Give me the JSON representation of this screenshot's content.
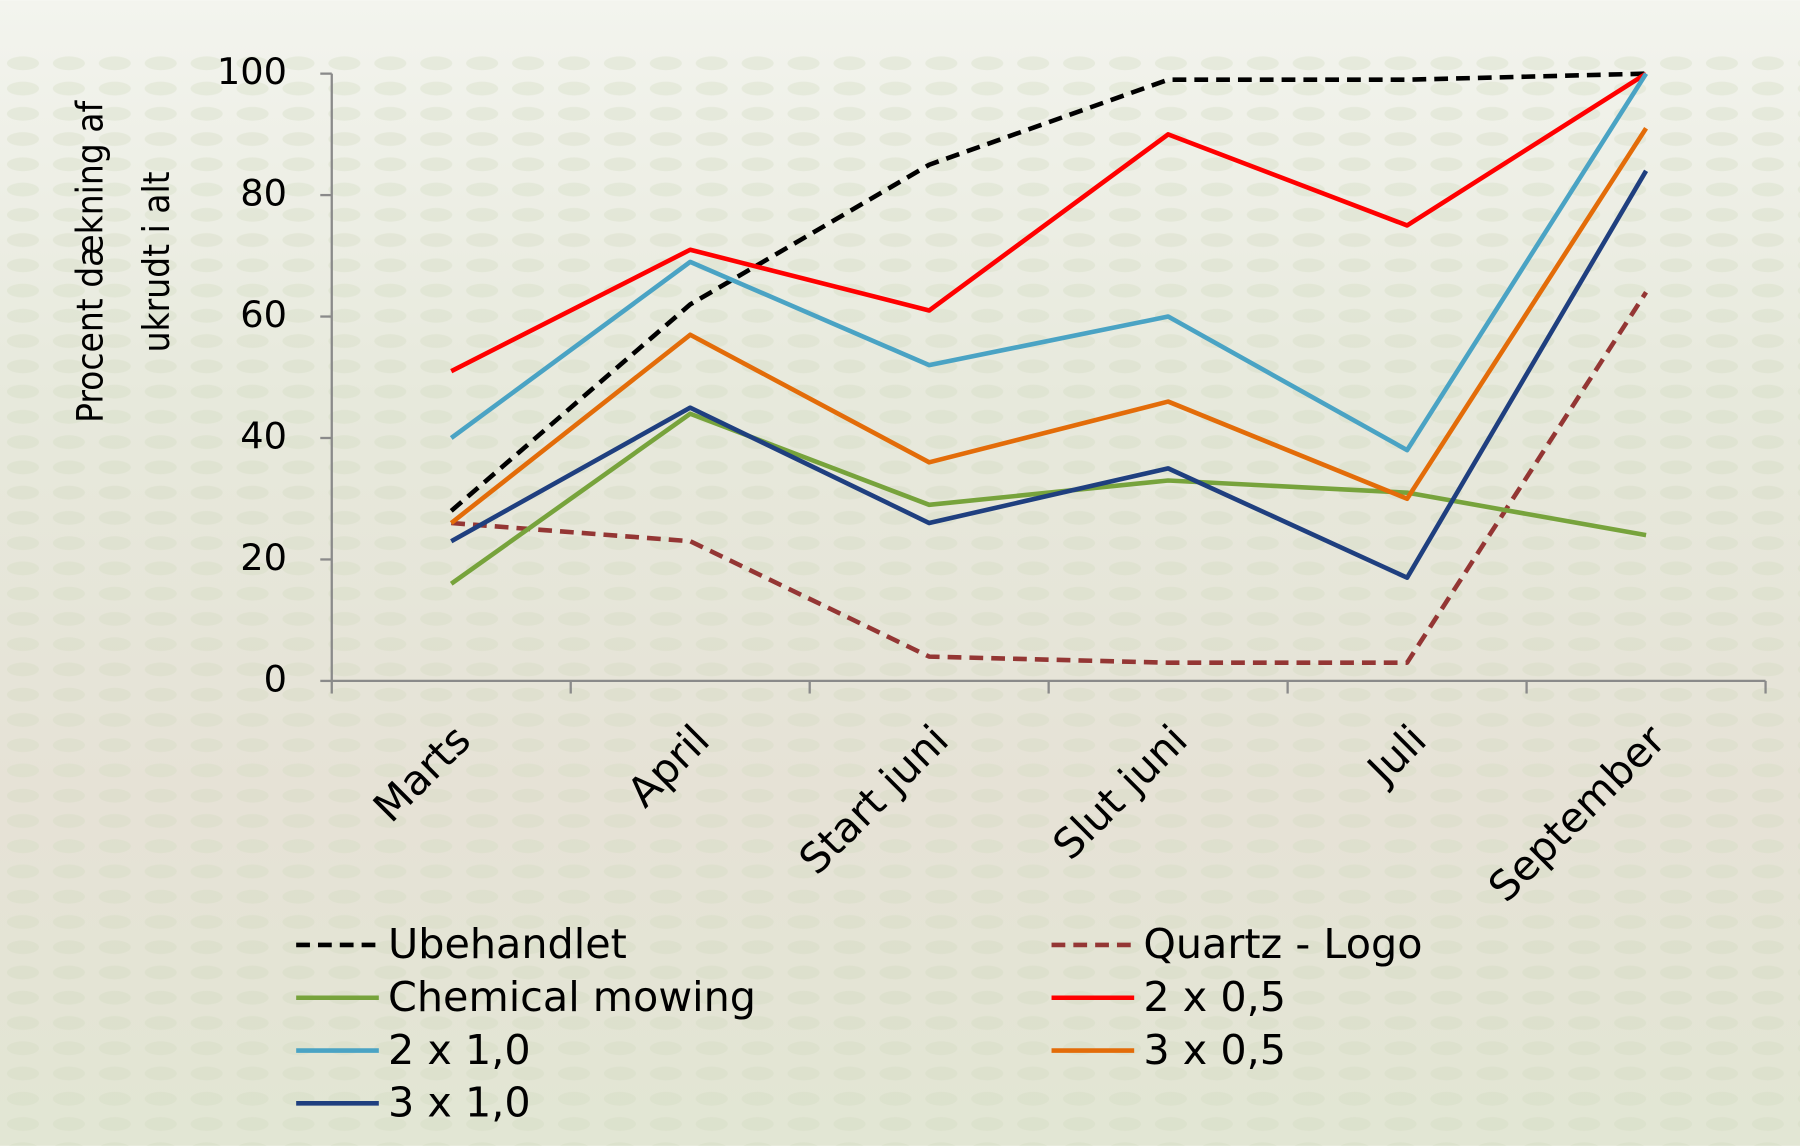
{
  "chart_data": {
    "type": "line",
    "y_label": [
      "Procent dækning af",
      "ukrudt i alt"
    ],
    "categories": [
      "Marts",
      "April",
      "Start juni",
      "Slut juni",
      "Juli",
      "September"
    ],
    "ylim": [
      0,
      100
    ],
    "yticks": [
      0,
      20,
      40,
      60,
      80,
      100
    ],
    "series": [
      {
        "name": "Ubehandlet",
        "color": "#000000",
        "dashed": true,
        "values": [
          28,
          62,
          85,
          99,
          99,
          100
        ]
      },
      {
        "name": "Quartz - Logo",
        "color": "#943634",
        "dashed": true,
        "values": [
          26,
          23,
          4,
          3,
          3,
          64
        ]
      },
      {
        "name": "Chemical mowing",
        "color": "#77a33c",
        "dashed": false,
        "values": [
          16,
          44,
          29,
          33,
          31,
          24
        ]
      },
      {
        "name": "2 x 0,5",
        "color": "#ff0000",
        "dashed": false,
        "values": [
          51,
          71,
          61,
          90,
          75,
          100
        ]
      },
      {
        "name": "2 x 1,0",
        "color": "#4aa3c4",
        "dashed": false,
        "values": [
          40,
          69,
          52,
          60,
          38,
          100
        ]
      },
      {
        "name": "3 x 0,5",
        "color": "#e36c09",
        "dashed": false,
        "values": [
          26,
          57,
          36,
          46,
          30,
          91
        ]
      },
      {
        "name": "3 x 1,0",
        "color": "#1f3f7f",
        "dashed": false,
        "values": [
          23,
          45,
          26,
          35,
          17,
          84
        ]
      }
    ]
  }
}
